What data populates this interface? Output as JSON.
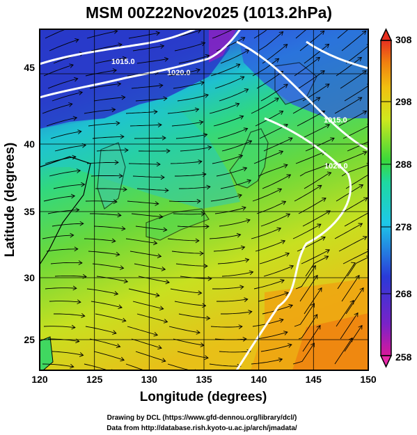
{
  "title": "MSM 00Z22Nov2025 (1013.2hPa)",
  "x_axis": {
    "label": "Longitude (degrees)",
    "ticks": [
      "120",
      "125",
      "130",
      "135",
      "140",
      "145",
      "150"
    ]
  },
  "y_axis": {
    "label": "Latitude (degrees)",
    "ticks": [
      "25",
      "30",
      "35",
      "40",
      "45"
    ]
  },
  "colorbar": {
    "ticks": [
      "308",
      "298",
      "288",
      "278",
      "268",
      "258"
    ]
  },
  "isobar_labels": [
    "1015.0",
    "1020.0",
    "1015.0",
    "1020.0"
  ],
  "credits": {
    "line1": "Drawing by DCL (https://www.gfd-dennou.org/library/dcl/)",
    "line2": "Data from http://database.rish.kyoto-u.ac.jp/arch/jmadata/"
  },
  "colors": {
    "cold": "#3a2fd0",
    "mid": "#22d26a",
    "warm": "#f08a10"
  }
}
